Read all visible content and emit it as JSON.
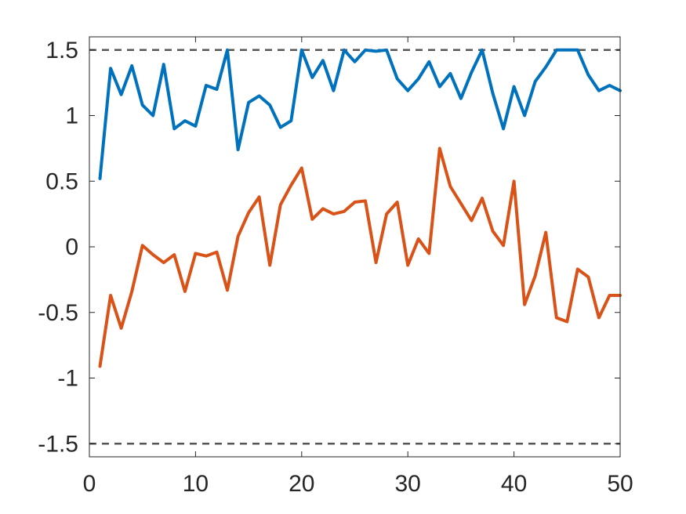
{
  "chart_data": {
    "type": "line",
    "title": "",
    "xlabel": "",
    "ylabel": "",
    "xlim": [
      0,
      50
    ],
    "ylim": [
      -1.6,
      1.6
    ],
    "xticks": [
      0,
      10,
      20,
      30,
      40,
      50
    ],
    "xtick_labels": [
      "0",
      "10",
      "20",
      "30",
      "40",
      "50"
    ],
    "yticks": [
      1.5,
      1,
      0.5,
      0,
      -0.5,
      -1,
      -1.5
    ],
    "ytick_labels": [
      "1.5",
      "1",
      "0.5",
      "0",
      "-0.5",
      "-1",
      "-1.5"
    ],
    "grid": false,
    "reference_lines": [
      {
        "y": 1.5,
        "style": "dashed",
        "color": "#555555"
      },
      {
        "y": -1.5,
        "style": "dashed",
        "color": "#555555"
      }
    ],
    "x": [
      1,
      2,
      3,
      4,
      5,
      6,
      7,
      8,
      9,
      10,
      11,
      12,
      13,
      14,
      15,
      16,
      17,
      18,
      19,
      20,
      21,
      22,
      23,
      24,
      25,
      26,
      27,
      28,
      29,
      30,
      31,
      32,
      33,
      34,
      35,
      36,
      37,
      38,
      39,
      40,
      41,
      42,
      43,
      44,
      45,
      46,
      47,
      48,
      49,
      50
    ],
    "series": [
      {
        "color": "#0072BD",
        "values": [
          0.52,
          1.36,
          1.16,
          1.38,
          1.08,
          1.0,
          1.39,
          0.9,
          0.96,
          0.92,
          1.23,
          1.2,
          1.5,
          0.74,
          1.1,
          1.15,
          1.08,
          0.91,
          0.96,
          1.5,
          1.29,
          1.42,
          1.19,
          1.5,
          1.41,
          1.5,
          1.49,
          1.5,
          1.28,
          1.19,
          1.28,
          1.41,
          1.22,
          1.32,
          1.13,
          1.33,
          1.5,
          1.17,
          0.9,
          1.22,
          1.0,
          1.26,
          1.37,
          1.5,
          1.5,
          1.5,
          1.31,
          1.19,
          1.23,
          1.19
        ]
      },
      {
        "color": "#D95319",
        "values": [
          -0.91,
          -0.37,
          -0.62,
          -0.34,
          0.01,
          -0.06,
          -0.12,
          -0.06,
          -0.34,
          -0.05,
          -0.07,
          -0.04,
          -0.33,
          0.08,
          0.26,
          0.38,
          -0.14,
          0.32,
          0.47,
          0.6,
          0.21,
          0.29,
          0.25,
          0.27,
          0.34,
          0.35,
          -0.12,
          0.25,
          0.34,
          -0.14,
          0.06,
          -0.05,
          0.75,
          0.46,
          0.33,
          0.2,
          0.37,
          0.12,
          0.01,
          0.5,
          -0.44,
          -0.22,
          0.11,
          -0.54,
          -0.57,
          -0.17,
          -0.23,
          -0.54,
          -0.37,
          -0.37
        ]
      }
    ]
  }
}
